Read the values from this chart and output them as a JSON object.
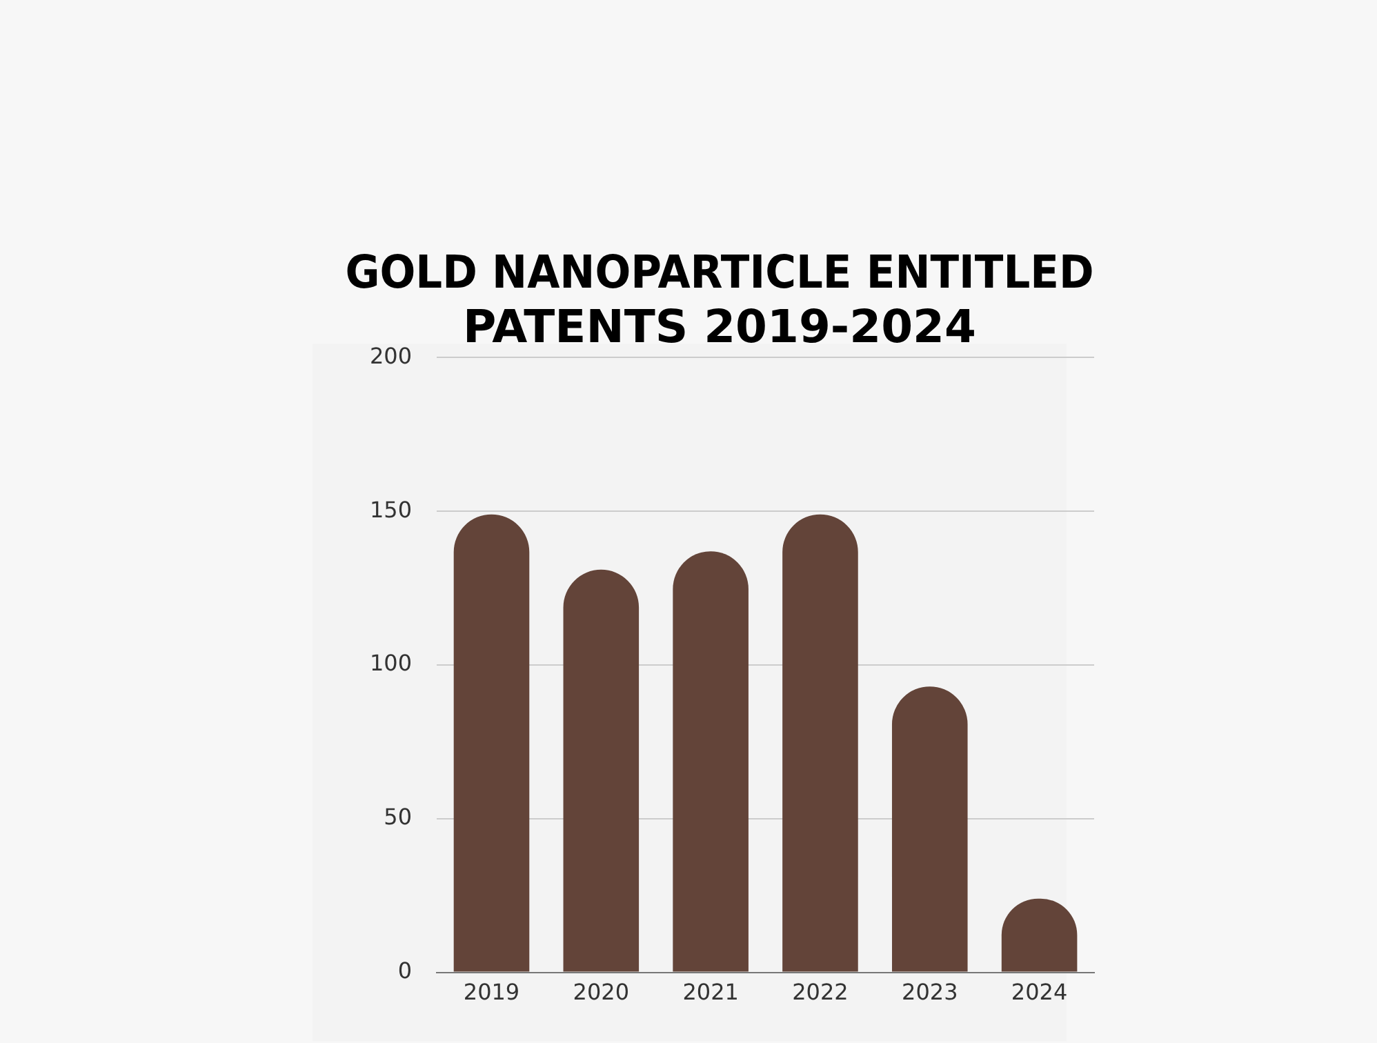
{
  "chart_data": {
    "type": "bar",
    "title": "GOLD NANOPARTICLE ENTITLED PATENTS 2019-2024",
    "categories": [
      "2019",
      "2020",
      "2021",
      "2022",
      "2023",
      "2024"
    ],
    "values": [
      149,
      131,
      137,
      149,
      93,
      24
    ],
    "color": "#634439",
    "ylim": [
      0,
      200
    ],
    "yticks": [
      0,
      50,
      100,
      150,
      200
    ],
    "grid": "y"
  }
}
